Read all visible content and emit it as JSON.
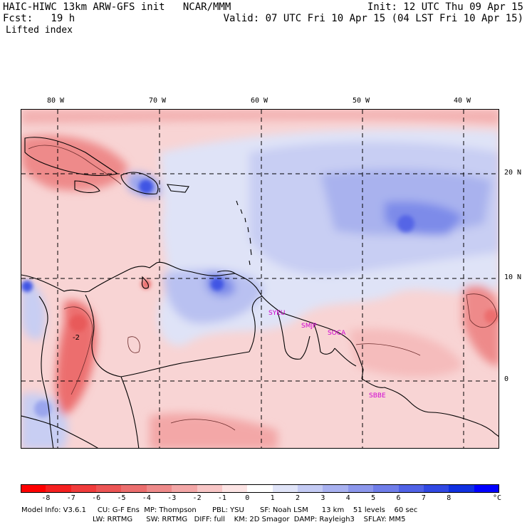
{
  "header": {
    "model_line": "HAIC-HIWC 13km ARW-GFS init   NCAR/MMM",
    "fcst_line": "Fcst:   19 h",
    "init_line": "Init: 12 UTC Thu 09 Apr 15",
    "valid_line": "Valid: 07 UTC Fri 10 Apr 15 (04 LST Fri 10 Apr 15)",
    "field_name": "Lifted index"
  },
  "axes": {
    "lon_labels": [
      "80 W",
      "70 W",
      "60 W",
      "50 W",
      "40 W"
    ],
    "lat_labels": [
      "20 N",
      "10 N",
      "0"
    ]
  },
  "map": {
    "stations": [
      "SYEU",
      "SMJP",
      "SOCA",
      "SBBE"
    ],
    "contour_label": "-2",
    "colors": {
      "station": "#d000d0",
      "grid": "#000000",
      "coast": "#000000"
    }
  },
  "colorbar": {
    "ticks": [
      "-8",
      "-7",
      "-6",
      "-5",
      "-4",
      "-3",
      "-2",
      "-1",
      "0",
      "1",
      "2",
      "3",
      "4",
      "5",
      "6",
      "7",
      "8"
    ],
    "unit": "°C",
    "colors": [
      "#ff0000",
      "#f52020",
      "#f03c3c",
      "#ec5555",
      "#eb6e6e",
      "#ee8a8a",
      "#f3a7a7",
      "#f8c6c6",
      "#fce4e4",
      "#ffffff",
      "#e0e4f8",
      "#c4cbf4",
      "#a8b1f0",
      "#8c97ec",
      "#6f7de9",
      "#5062e6",
      "#3148e3",
      "#1030e0",
      "#0000ff"
    ]
  },
  "footer": {
    "line1": "Model Info: V3.6.1     CU: G-F Ens  MP: Thompson       PBL: YSU       SF: Noah LSM      13 km    51 levels    60 sec",
    "line2": "LW: RRTMG      SW: RRTMG   DIFF: full    KM: 2D Smagor  DAMP: Rayleigh3    SFLAY: MM5"
  }
}
